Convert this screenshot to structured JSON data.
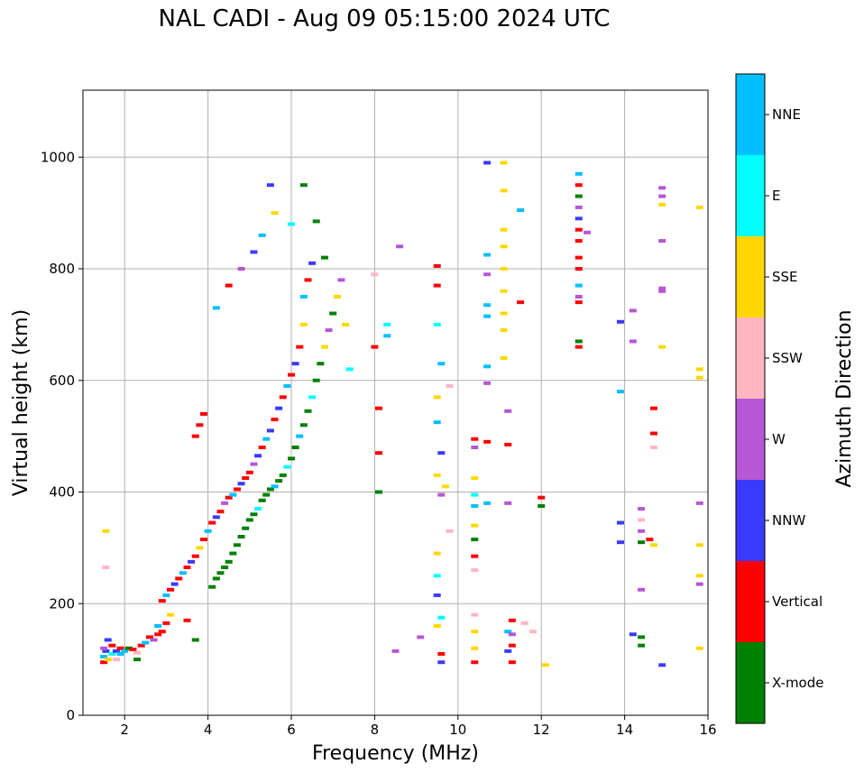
{
  "chart_data": {
    "type": "scatter",
    "title": "NAL CADI - Aug 09 05:15:00 2024 UTC",
    "xlabel": "Frequency (MHz)",
    "ylabel": "Virtual height (km)",
    "xlim": [
      1,
      16
    ],
    "ylim": [
      0,
      1120
    ],
    "xticks": [
      "2",
      "4",
      "6",
      "8",
      "10",
      "12",
      "14",
      "16"
    ],
    "yticks": [
      "0",
      "200",
      "400",
      "600",
      "800",
      "1000"
    ],
    "grid": true,
    "colorbar": {
      "label": "Azimuth Direction",
      "categories": [
        {
          "name": "X-mode",
          "color": "#008000"
        },
        {
          "name": "Vertical",
          "color": "#ff0000"
        },
        {
          "name": "NNW",
          "color": "#3a3aff"
        },
        {
          "name": "W",
          "color": "#b657d6"
        },
        {
          "name": "SSW",
          "color": "#ffb6c1"
        },
        {
          "name": "SSE",
          "color": "#ffd700"
        },
        {
          "name": "E",
          "color": "#00ffff"
        },
        {
          "name": "NNE",
          "color": "#00bfff"
        }
      ]
    },
    "points": [
      [
        1.5,
        95,
        "Vertical"
      ],
      [
        1.5,
        105,
        "NNE"
      ],
      [
        1.55,
        115,
        "NNW"
      ],
      [
        1.6,
        100,
        "SSE"
      ],
      [
        1.6,
        135,
        "NNW"
      ],
      [
        1.5,
        120,
        "W"
      ],
      [
        1.7,
        110,
        "E"
      ],
      [
        1.7,
        125,
        "Vertical"
      ],
      [
        1.8,
        115,
        "NNW"
      ],
      [
        1.8,
        100,
        "SSW"
      ],
      [
        1.9,
        120,
        "Vertical"
      ],
      [
        1.9,
        110,
        "NNE"
      ],
      [
        2.0,
        115,
        "NNE"
      ],
      [
        2.1,
        120,
        "X-mode"
      ],
      [
        2.2,
        118,
        "Vertical"
      ],
      [
        2.3,
        112,
        "SSW"
      ],
      [
        2.3,
        100,
        "X-mode"
      ],
      [
        2.4,
        125,
        "Vertical"
      ],
      [
        2.5,
        130,
        "NNE"
      ],
      [
        2.6,
        140,
        "Vertical"
      ],
      [
        2.7,
        135,
        "W"
      ],
      [
        2.8,
        145,
        "Vertical"
      ],
      [
        2.8,
        160,
        "NNE"
      ],
      [
        2.9,
        150,
        "Vertical"
      ],
      [
        3.0,
        165,
        "Vertical"
      ],
      [
        3.1,
        180,
        "SSE"
      ],
      [
        3.5,
        170,
        "Vertical"
      ],
      [
        3.7,
        135,
        "X-mode"
      ],
      [
        1.55,
        330,
        "SSE"
      ],
      [
        1.55,
        265,
        "SSW"
      ],
      [
        2.9,
        205,
        "Vertical"
      ],
      [
        3.0,
        215,
        "NNE"
      ],
      [
        3.1,
        225,
        "Vertical"
      ],
      [
        3.2,
        235,
        "NNW"
      ],
      [
        3.3,
        245,
        "Vertical"
      ],
      [
        3.4,
        255,
        "NNE"
      ],
      [
        3.5,
        265,
        "Vertical"
      ],
      [
        3.6,
        275,
        "NNW"
      ],
      [
        3.7,
        285,
        "Vertical"
      ],
      [
        3.8,
        300,
        "SSE"
      ],
      [
        3.9,
        315,
        "Vertical"
      ],
      [
        4.0,
        330,
        "NNE"
      ],
      [
        4.1,
        345,
        "Vertical"
      ],
      [
        4.2,
        355,
        "NNW"
      ],
      [
        4.3,
        365,
        "Vertical"
      ],
      [
        4.4,
        380,
        "W"
      ],
      [
        4.5,
        390,
        "Vertical"
      ],
      [
        4.6,
        395,
        "NNE"
      ],
      [
        4.7,
        405,
        "Vertical"
      ],
      [
        4.8,
        415,
        "NNW"
      ],
      [
        4.9,
        425,
        "Vertical"
      ],
      [
        5.0,
        435,
        "Vertical"
      ],
      [
        5.1,
        450,
        "W"
      ],
      [
        5.2,
        465,
        "NNW"
      ],
      [
        5.3,
        480,
        "Vertical"
      ],
      [
        5.4,
        495,
        "NNE"
      ],
      [
        5.5,
        510,
        "NNW"
      ],
      [
        5.6,
        530,
        "Vertical"
      ],
      [
        5.7,
        550,
        "NNW"
      ],
      [
        5.8,
        570,
        "Vertical"
      ],
      [
        5.9,
        590,
        "NNE"
      ],
      [
        6.0,
        610,
        "Vertical"
      ],
      [
        6.1,
        630,
        "NNW"
      ],
      [
        6.2,
        660,
        "Vertical"
      ],
      [
        6.3,
        700,
        "SSE"
      ],
      [
        6.3,
        750,
        "NNE"
      ],
      [
        6.4,
        780,
        "Vertical"
      ],
      [
        6.5,
        810,
        "NNW"
      ],
      [
        4.1,
        230,
        "X-mode"
      ],
      [
        4.2,
        245,
        "X-mode"
      ],
      [
        4.3,
        255,
        "X-mode"
      ],
      [
        4.4,
        265,
        "X-mode"
      ],
      [
        4.5,
        275,
        "X-mode"
      ],
      [
        4.6,
        290,
        "X-mode"
      ],
      [
        4.7,
        305,
        "X-mode"
      ],
      [
        4.8,
        320,
        "X-mode"
      ],
      [
        4.9,
        335,
        "X-mode"
      ],
      [
        5.0,
        350,
        "X-mode"
      ],
      [
        5.1,
        360,
        "X-mode"
      ],
      [
        5.2,
        370,
        "E"
      ],
      [
        5.3,
        385,
        "X-mode"
      ],
      [
        5.4,
        395,
        "X-mode"
      ],
      [
        5.5,
        405,
        "X-mode"
      ],
      [
        5.6,
        410,
        "NNE"
      ],
      [
        5.7,
        420,
        "X-mode"
      ],
      [
        5.8,
        430,
        "X-mode"
      ],
      [
        5.9,
        445,
        "E"
      ],
      [
        6.0,
        460,
        "X-mode"
      ],
      [
        6.1,
        480,
        "X-mode"
      ],
      [
        6.2,
        500,
        "NNE"
      ],
      [
        6.3,
        520,
        "X-mode"
      ],
      [
        6.4,
        545,
        "X-mode"
      ],
      [
        6.5,
        570,
        "E"
      ],
      [
        6.6,
        600,
        "X-mode"
      ],
      [
        6.7,
        630,
        "X-mode"
      ],
      [
        6.8,
        660,
        "SSE"
      ],
      [
        6.9,
        690,
        "W"
      ],
      [
        7.0,
        720,
        "X-mode"
      ],
      [
        7.1,
        750,
        "SSE"
      ],
      [
        7.2,
        780,
        "W"
      ],
      [
        3.7,
        500,
        "Vertical"
      ],
      [
        3.8,
        520,
        "Vertical"
      ],
      [
        3.9,
        540,
        "Vertical"
      ],
      [
        4.2,
        730,
        "NNE"
      ],
      [
        4.5,
        770,
        "Vertical"
      ],
      [
        4.8,
        800,
        "W"
      ],
      [
        5.1,
        830,
        "NNW"
      ],
      [
        5.3,
        860,
        "NNE"
      ],
      [
        5.6,
        900,
        "SSE"
      ],
      [
        5.5,
        950,
        "NNW"
      ],
      [
        6.3,
        950,
        "X-mode"
      ],
      [
        6.0,
        880,
        "E"
      ],
      [
        6.6,
        885,
        "X-mode"
      ],
      [
        6.8,
        820,
        "X-mode"
      ],
      [
        7.3,
        700,
        "SSE"
      ],
      [
        7.4,
        620,
        "E"
      ],
      [
        8.0,
        790,
        "SSW"
      ],
      [
        8.0,
        660,
        "Vertical"
      ],
      [
        8.1,
        550,
        "Vertical"
      ],
      [
        8.1,
        470,
        "Vertical"
      ],
      [
        8.1,
        400,
        "X-mode"
      ],
      [
        8.3,
        700,
        "E"
      ],
      [
        8.3,
        680,
        "NNE"
      ],
      [
        8.6,
        840,
        "W"
      ],
      [
        8.5,
        115,
        "W"
      ],
      [
        9.1,
        140,
        "W"
      ],
      [
        9.5,
        805,
        "Vertical"
      ],
      [
        9.5,
        770,
        "Vertical"
      ],
      [
        9.5,
        700,
        "E"
      ],
      [
        9.6,
        630,
        "NNE"
      ],
      [
        9.5,
        570,
        "SSE"
      ],
      [
        9.5,
        525,
        "NNE"
      ],
      [
        9.6,
        470,
        "NNW"
      ],
      [
        9.5,
        430,
        "SSE"
      ],
      [
        9.6,
        395,
        "W"
      ],
      [
        9.7,
        410,
        "SSE"
      ],
      [
        9.5,
        290,
        "SSE"
      ],
      [
        9.5,
        250,
        "E"
      ],
      [
        9.5,
        215,
        "NNW"
      ],
      [
        9.6,
        175,
        "E"
      ],
      [
        9.5,
        160,
        "SSE"
      ],
      [
        9.6,
        110,
        "Vertical"
      ],
      [
        9.6,
        95,
        "NNW"
      ],
      [
        9.8,
        590,
        "SSW"
      ],
      [
        9.8,
        330,
        "SSW"
      ],
      [
        10.4,
        495,
        "Vertical"
      ],
      [
        10.4,
        480,
        "W"
      ],
      [
        10.4,
        425,
        "SSE"
      ],
      [
        10.4,
        395,
        "E"
      ],
      [
        10.4,
        375,
        "NNE"
      ],
      [
        10.4,
        340,
        "SSE"
      ],
      [
        10.4,
        315,
        "X-mode"
      ],
      [
        10.4,
        285,
        "Vertical"
      ],
      [
        10.4,
        260,
        "SSW"
      ],
      [
        10.4,
        180,
        "SSW"
      ],
      [
        10.4,
        150,
        "SSE"
      ],
      [
        10.4,
        120,
        "SSE"
      ],
      [
        10.4,
        95,
        "Vertical"
      ],
      [
        10.7,
        990,
        "NNW"
      ],
      [
        10.7,
        825,
        "NNE"
      ],
      [
        10.7,
        790,
        "W"
      ],
      [
        10.7,
        735,
        "NNE"
      ],
      [
        10.7,
        715,
        "NNE"
      ],
      [
        10.7,
        625,
        "NNE"
      ],
      [
        10.7,
        595,
        "W"
      ],
      [
        10.7,
        490,
        "Vertical"
      ],
      [
        10.7,
        380,
        "NNE"
      ],
      [
        11.1,
        990,
        "SSE"
      ],
      [
        11.1,
        940,
        "SSE"
      ],
      [
        11.1,
        870,
        "SSE"
      ],
      [
        11.1,
        840,
        "SSE"
      ],
      [
        11.1,
        800,
        "SSE"
      ],
      [
        11.1,
        760,
        "SSE"
      ],
      [
        11.1,
        720,
        "SSE"
      ],
      [
        11.1,
        690,
        "SSE"
      ],
      [
        11.1,
        640,
        "SSE"
      ],
      [
        11.2,
        545,
        "W"
      ],
      [
        11.2,
        485,
        "Vertical"
      ],
      [
        11.2,
        380,
        "W"
      ],
      [
        11.2,
        150,
        "NNE"
      ],
      [
        11.2,
        115,
        "NNW"
      ],
      [
        11.3,
        170,
        "Vertical"
      ],
      [
        11.3,
        145,
        "W"
      ],
      [
        11.3,
        125,
        "Vertical"
      ],
      [
        11.3,
        95,
        "Vertical"
      ],
      [
        11.5,
        905,
        "NNE"
      ],
      [
        11.5,
        740,
        "Vertical"
      ],
      [
        11.6,
        165,
        "SSW"
      ],
      [
        11.8,
        150,
        "SSW"
      ],
      [
        12.0,
        390,
        "Vertical"
      ],
      [
        12.0,
        375,
        "X-mode"
      ],
      [
        12.1,
        90,
        "SSE"
      ],
      [
        12.9,
        970,
        "NNE"
      ],
      [
        12.9,
        950,
        "Vertical"
      ],
      [
        12.9,
        930,
        "X-mode"
      ],
      [
        12.9,
        910,
        "W"
      ],
      [
        12.9,
        890,
        "NNW"
      ],
      [
        12.9,
        870,
        "Vertical"
      ],
      [
        12.9,
        850,
        "Vertical"
      ],
      [
        12.9,
        820,
        "Vertical"
      ],
      [
        12.9,
        800,
        "Vertical"
      ],
      [
        12.9,
        770,
        "NNE"
      ],
      [
        12.9,
        750,
        "W"
      ],
      [
        12.9,
        740,
        "Vertical"
      ],
      [
        12.9,
        670,
        "X-mode"
      ],
      [
        12.9,
        660,
        "Vertical"
      ],
      [
        13.1,
        865,
        "W"
      ],
      [
        13.9,
        705,
        "NNW"
      ],
      [
        13.9,
        580,
        "NNE"
      ],
      [
        13.9,
        345,
        "NNW"
      ],
      [
        13.9,
        310,
        "NNW"
      ],
      [
        14.2,
        725,
        "W"
      ],
      [
        14.2,
        670,
        "W"
      ],
      [
        14.2,
        145,
        "NNW"
      ],
      [
        14.4,
        370,
        "W"
      ],
      [
        14.4,
        350,
        "SSW"
      ],
      [
        14.4,
        330,
        "W"
      ],
      [
        14.4,
        310,
        "X-mode"
      ],
      [
        14.4,
        225,
        "W"
      ],
      [
        14.4,
        140,
        "X-mode"
      ],
      [
        14.4,
        125,
        "X-mode"
      ],
      [
        14.6,
        315,
        "Vertical"
      ],
      [
        14.7,
        550,
        "Vertical"
      ],
      [
        14.7,
        505,
        "Vertical"
      ],
      [
        14.7,
        480,
        "SSW"
      ],
      [
        14.7,
        305,
        "SSE"
      ],
      [
        14.9,
        945,
        "W"
      ],
      [
        14.9,
        930,
        "W"
      ],
      [
        14.9,
        915,
        "SSE"
      ],
      [
        14.9,
        850,
        "W"
      ],
      [
        14.9,
        765,
        "W"
      ],
      [
        14.9,
        760,
        "W"
      ],
      [
        14.9,
        660,
        "SSE"
      ],
      [
        14.9,
        90,
        "NNW"
      ],
      [
        15.8,
        910,
        "SSE"
      ],
      [
        15.8,
        620,
        "SSE"
      ],
      [
        15.8,
        605,
        "SSE"
      ],
      [
        15.8,
        380,
        "W"
      ],
      [
        15.8,
        305,
        "SSE"
      ],
      [
        15.8,
        250,
        "SSE"
      ],
      [
        15.8,
        235,
        "W"
      ],
      [
        15.8,
        120,
        "SSE"
      ]
    ]
  }
}
